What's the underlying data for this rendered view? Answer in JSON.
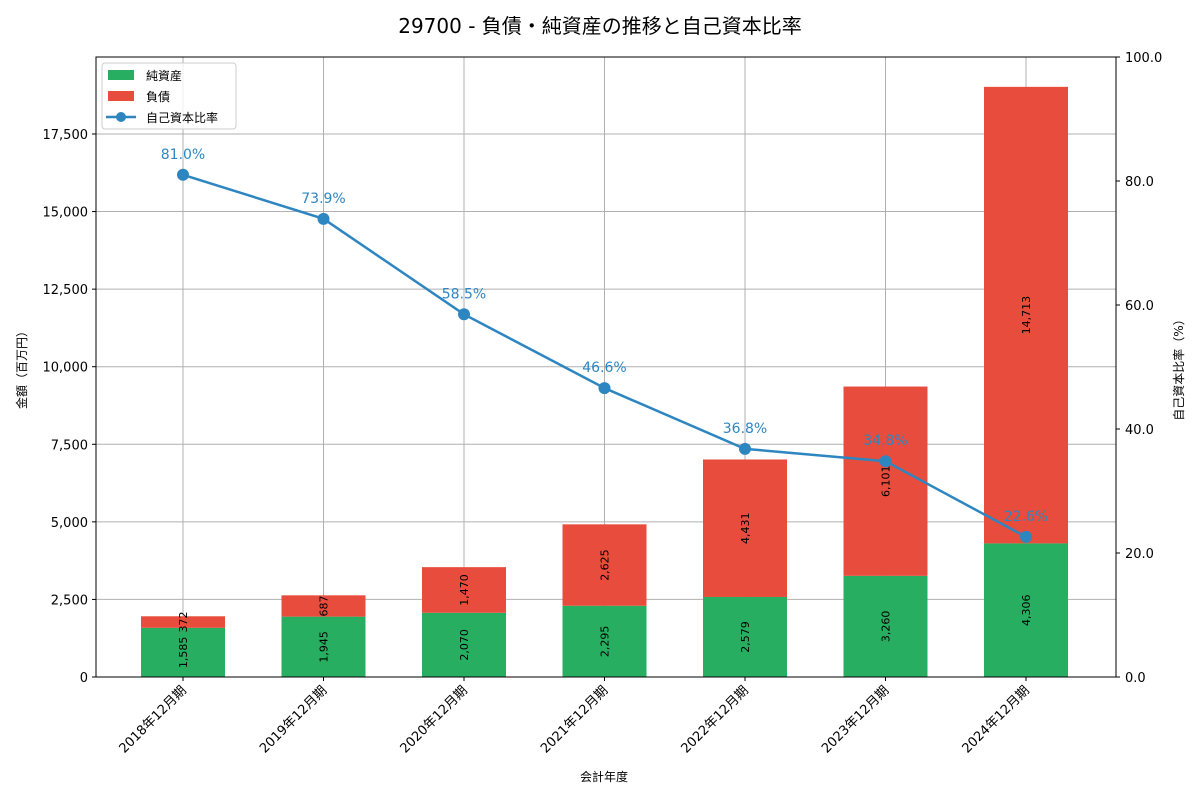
{
  "chart_data": {
    "type": "bar",
    "stacked": true,
    "title": "29700 - 負債・純資産の推移と自己資本比率",
    "xlabel": "会計年度",
    "ylabel": "金額（百万円）",
    "y2label": "自己資本比率（%）",
    "categories": [
      "2018年12月期",
      "2019年12月期",
      "2020年12月期",
      "2021年12月期",
      "2022年12月期",
      "2023年12月期",
      "2024年12月期"
    ],
    "series": [
      {
        "name": "純資産",
        "type": "bar",
        "axis": "left",
        "color": "#27ae60",
        "values": [
          1585,
          1945,
          2070,
          2295,
          2579,
          3260,
          4306
        ],
        "labels": [
          "1,585",
          "1,945",
          "2,070",
          "2,295",
          "2,579",
          "3,260",
          "4,306"
        ]
      },
      {
        "name": "負債",
        "type": "bar",
        "axis": "left",
        "color": "#e74c3c",
        "values": [
          372,
          687,
          1470,
          2625,
          4431,
          6101,
          14713
        ],
        "labels": [
          "372",
          "687",
          "1,470",
          "2,625",
          "4,431",
          "6,101",
          "14,713"
        ]
      },
      {
        "name": "自己資本比率",
        "type": "line",
        "axis": "right",
        "color": "#2e86c1",
        "values": [
          81.0,
          73.9,
          58.5,
          46.6,
          36.8,
          34.8,
          22.6
        ],
        "labels": [
          "81.0%",
          "73.9%",
          "58.5%",
          "46.6%",
          "36.8%",
          "34.8%",
          "22.6%"
        ]
      }
    ],
    "ylim": [
      0,
      19981
    ],
    "y2lim": [
      0,
      100
    ],
    "yticks": [
      0,
      2500,
      5000,
      7500,
      10000,
      12500,
      15000,
      17500
    ],
    "ytick_labels": [
      "0",
      "2,500",
      "5,000",
      "7,500",
      "10,000",
      "12,500",
      "15,000",
      "17,500"
    ],
    "y2ticks": [
      0,
      20,
      40,
      60,
      80,
      100
    ],
    "y2tick_labels": [
      "0.0",
      "20.0",
      "40.0",
      "60.0",
      "80.0",
      "100.0"
    ],
    "grid": true,
    "legend_position": "upper left",
    "legend": [
      "純資産",
      "負債",
      "自己資本比率"
    ]
  }
}
